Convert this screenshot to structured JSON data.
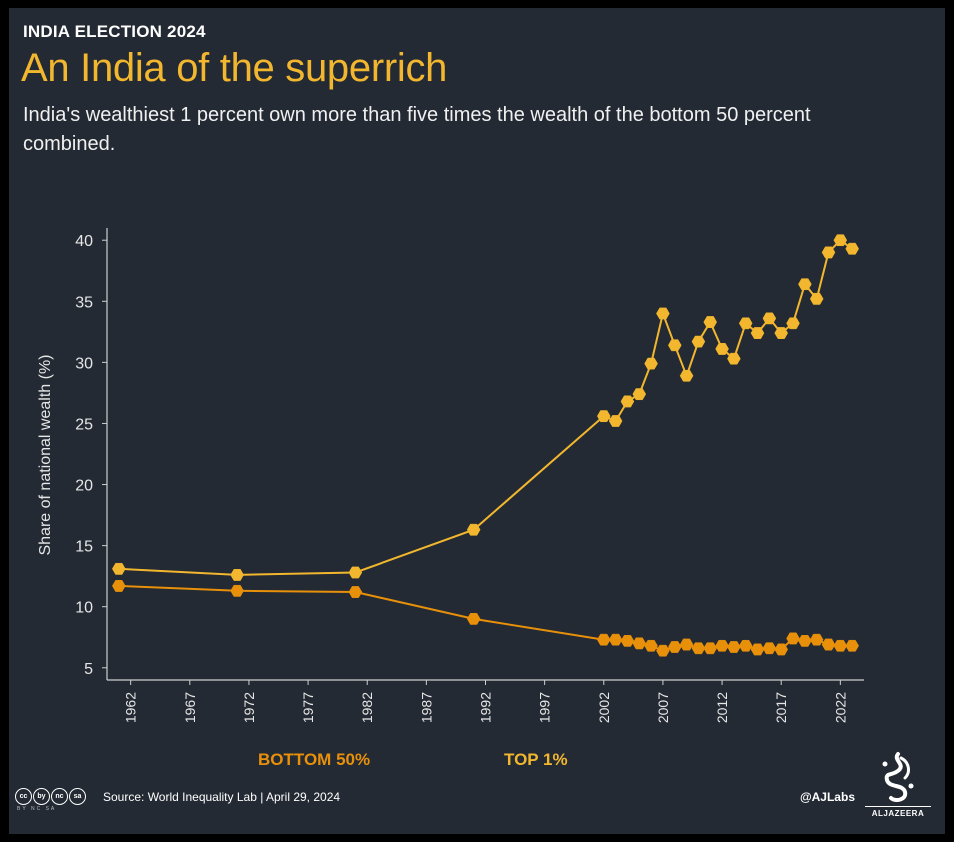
{
  "header": {
    "kicker": "INDIA ELECTION 2024",
    "title": "An India of the superrich",
    "subtitle": "India's wealthiest 1 percent own more than five times the wealth of the bottom 50 percent combined."
  },
  "legend": {
    "bottom_label": "BOTTOM 50%",
    "top_label": "TOP 1%"
  },
  "footer": {
    "source": "Source: World Inequality Lab | April 29, 2024",
    "credit": "@AJLabs",
    "logo_text": "ALJAZEERA",
    "license_icons": [
      "cc",
      "by",
      "nc",
      "sa"
    ],
    "license_sub": "BY NC SA"
  },
  "colors": {
    "background": "#232a33",
    "top_series": "#f2b72e",
    "bottom_series": "#e8900a",
    "headline": "#f2b72e"
  },
  "chart_data": {
    "type": "line",
    "ylabel": "Share of national wealth (%)",
    "xlabel": "",
    "ylim": [
      4,
      41
    ],
    "xlim": [
      1960,
      2024
    ],
    "yticks": [
      5,
      10,
      15,
      20,
      25,
      30,
      35,
      40
    ],
    "xticks": [
      1962,
      1967,
      1972,
      1977,
      1982,
      1987,
      1992,
      1997,
      2002,
      2007,
      2012,
      2017,
      2022
    ],
    "grid": false,
    "series": [
      {
        "name": "TOP 1%",
        "color": "#f2b72e",
        "points": [
          [
            1961,
            13.1
          ],
          [
            1971,
            12.6
          ],
          [
            1981,
            12.8
          ],
          [
            1991,
            16.3
          ],
          [
            2002,
            25.6
          ],
          [
            2003,
            25.2
          ],
          [
            2004,
            26.8
          ],
          [
            2005,
            27.4
          ],
          [
            2006,
            29.9
          ],
          [
            2007,
            34.0
          ],
          [
            2008,
            31.4
          ],
          [
            2009,
            28.9
          ],
          [
            2010,
            31.7
          ],
          [
            2011,
            33.3
          ],
          [
            2012,
            31.1
          ],
          [
            2013,
            30.3
          ],
          [
            2014,
            33.2
          ],
          [
            2015,
            32.4
          ],
          [
            2016,
            33.6
          ],
          [
            2017,
            32.4
          ],
          [
            2018,
            33.2
          ],
          [
            2019,
            36.4
          ],
          [
            2020,
            35.2
          ],
          [
            2021,
            39.0
          ],
          [
            2022,
            40.0
          ],
          [
            2023,
            39.3
          ]
        ]
      },
      {
        "name": "BOTTOM 50%",
        "color": "#e8900a",
        "points": [
          [
            1961,
            11.7
          ],
          [
            1971,
            11.3
          ],
          [
            1981,
            11.2
          ],
          [
            1991,
            9.0
          ],
          [
            2002,
            7.3
          ],
          [
            2003,
            7.3
          ],
          [
            2004,
            7.2
          ],
          [
            2005,
            7.0
          ],
          [
            2006,
            6.8
          ],
          [
            2007,
            6.4
          ],
          [
            2008,
            6.7
          ],
          [
            2009,
            6.9
          ],
          [
            2010,
            6.6
          ],
          [
            2011,
            6.6
          ],
          [
            2012,
            6.8
          ],
          [
            2013,
            6.7
          ],
          [
            2014,
            6.8
          ],
          [
            2015,
            6.5
          ],
          [
            2016,
            6.6
          ],
          [
            2017,
            6.5
          ],
          [
            2018,
            7.4
          ],
          [
            2019,
            7.2
          ],
          [
            2020,
            7.3
          ],
          [
            2021,
            6.9
          ],
          [
            2022,
            6.8
          ],
          [
            2023,
            6.8
          ]
        ]
      }
    ]
  }
}
